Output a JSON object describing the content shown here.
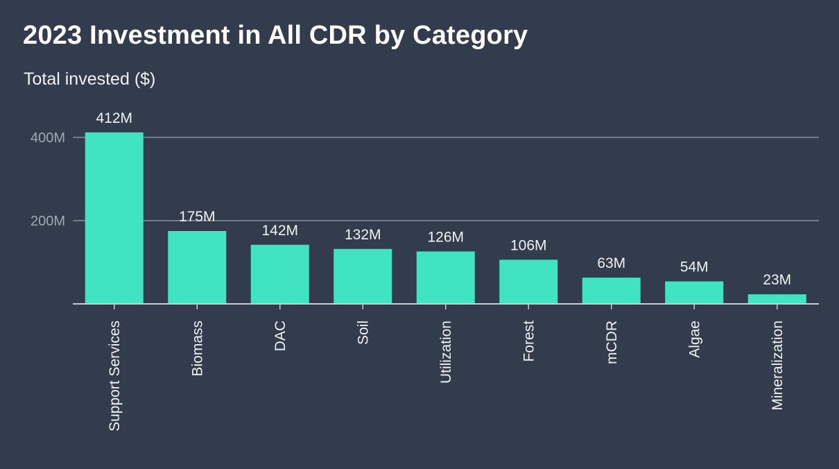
{
  "chart_data": {
    "type": "bar",
    "title": "2023 Investment in All CDR by Category",
    "subtitle": "Total invested ($)",
    "xlabel": "",
    "ylabel": "Total invested ($)",
    "categories": [
      "Support Services",
      "Biomass",
      "DAC",
      "Soil",
      "Utilization",
      "Forest",
      "mCDR",
      "Algae",
      "Mineralization"
    ],
    "values": [
      412,
      175,
      142,
      132,
      126,
      106,
      63,
      54,
      23
    ],
    "value_unit": "M",
    "data_labels": [
      "412M",
      "175M",
      "142M",
      "132M",
      "126M",
      "106M",
      "63M",
      "54M",
      "23M"
    ],
    "ylim": [
      0,
      400
    ],
    "yticks": [
      {
        "value": 200,
        "label": "200M"
      },
      {
        "value": 400,
        "label": "400M"
      }
    ],
    "grid": true,
    "legend": "none",
    "bar_color": "#40e4c3"
  }
}
